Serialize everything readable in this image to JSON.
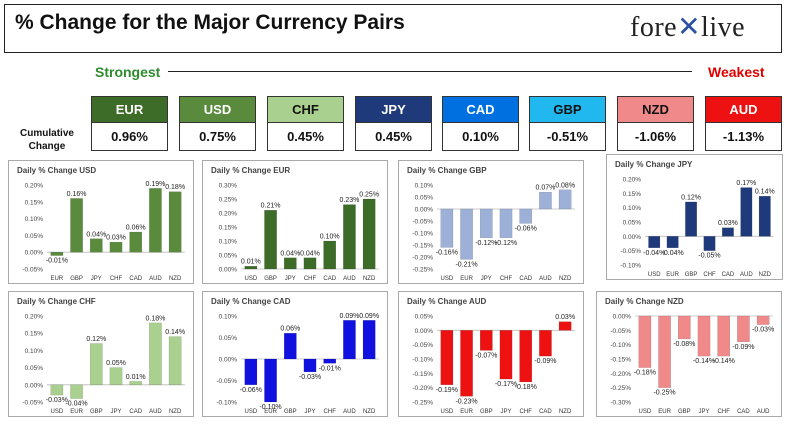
{
  "header": {
    "title": "% Change for the Major Currency Pairs",
    "logo_left": "fore",
    "logo_right": "live"
  },
  "scale": {
    "strongest": "Strongest",
    "weakest": "Weakest"
  },
  "cumulative": {
    "label": "Cumulative Change",
    "items": [
      {
        "code": "EUR",
        "value": "0.96%",
        "bg": "#3d6b28",
        "fg": "#ffffff"
      },
      {
        "code": "USD",
        "value": "0.75%",
        "bg": "#5a8a3c",
        "fg": "#ffffff"
      },
      {
        "code": "CHF",
        "value": "0.45%",
        "bg": "#a9d08e",
        "fg": "#111111"
      },
      {
        "code": "JPY",
        "value": "0.45%",
        "bg": "#1f3a7a",
        "fg": "#ffffff"
      },
      {
        "code": "CAD",
        "value": "0.10%",
        "bg": "#0070e0",
        "fg": "#ffffff"
      },
      {
        "code": "GBP",
        "value": "-0.51%",
        "bg": "#20b8ef",
        "fg": "#111111"
      },
      {
        "code": "NZD",
        "value": "-1.06%",
        "bg": "#f08a8a",
        "fg": "#111111"
      },
      {
        "code": "AUD",
        "value": "-1.13%",
        "bg": "#ee1111",
        "fg": "#ffffff"
      }
    ]
  },
  "chart_data": [
    {
      "type": "bar",
      "title": "Daily % Change USD",
      "categories": [
        "EUR",
        "GBP",
        "JPY",
        "CHF",
        "CAD",
        "AUD",
        "NZD"
      ],
      "values": [
        -0.01,
        0.16,
        0.04,
        0.03,
        0.06,
        0.19,
        0.18
      ],
      "labels": [
        "-0.01%",
        "0.16%",
        "0.04%",
        "0.03%",
        "0.06%",
        "0.19%",
        "0.18%"
      ],
      "yticks": [
        "-0.05%",
        "0.00%",
        "0.05%",
        "0.10%",
        "0.15%",
        "0.20%"
      ],
      "ylim": [
        -0.05,
        0.2
      ],
      "color": "#5a8a3c"
    },
    {
      "type": "bar",
      "title": "Daily % Change EUR",
      "categories": [
        "USD",
        "GBP",
        "JPY",
        "CHF",
        "CAD",
        "AUD",
        "NZD"
      ],
      "values": [
        0.01,
        0.21,
        0.04,
        0.04,
        0.1,
        0.23,
        0.25
      ],
      "labels": [
        "0.01%",
        "0.21%",
        "0.04%",
        "0.04%",
        "0.10%",
        "0.23%",
        "0.25%"
      ],
      "yticks": [
        "0.00%",
        "0.05%",
        "0.10%",
        "0.15%",
        "0.20%",
        "0.25%",
        "0.30%"
      ],
      "ylim": [
        0,
        0.3
      ],
      "color": "#3d6b28"
    },
    {
      "type": "bar",
      "title": "Daily % Change GBP",
      "categories": [
        "USD",
        "EUR",
        "JPY",
        "CHF",
        "CAD",
        "AUD",
        "NZD"
      ],
      "values": [
        -0.16,
        -0.21,
        -0.12,
        -0.12,
        -0.06,
        0.07,
        0.08
      ],
      "labels": [
        "-0.16%",
        "-0.21%",
        "-0.12%",
        "-0.12%",
        "-0.06%",
        "0.07%",
        "0.08%"
      ],
      "yticks": [
        "-0.25%",
        "-0.20%",
        "-0.15%",
        "-0.10%",
        "-0.05%",
        "0.00%",
        "0.05%",
        "0.10%"
      ],
      "ylim": [
        -0.25,
        0.1
      ],
      "color": "#9cb0d8"
    },
    {
      "type": "bar",
      "title": "Daily % Change JPY",
      "categories": [
        "USD",
        "EUR",
        "GBP",
        "CHF",
        "CAD",
        "AUD",
        "NZD"
      ],
      "values": [
        -0.04,
        -0.04,
        0.12,
        -0.05,
        0.03,
        0.17,
        0.14
      ],
      "labels": [
        "-0.04%",
        "-0.04%",
        "0.12%",
        "-0.05%",
        "0.03%",
        "0.17%",
        "0.14%"
      ],
      "yticks": [
        "-0.10%",
        "-0.05%",
        "0.00%",
        "0.05%",
        "0.10%",
        "0.15%",
        "0.20%"
      ],
      "ylim": [
        -0.1,
        0.2
      ],
      "color": "#1f3a7a"
    },
    {
      "type": "bar",
      "title": "Daily % Change CHF",
      "categories": [
        "USD",
        "EUR",
        "GBP",
        "JPY",
        "CAD",
        "AUD",
        "NZD"
      ],
      "values": [
        -0.03,
        -0.04,
        0.12,
        0.05,
        0.01,
        0.18,
        0.14
      ],
      "labels": [
        "-0.03%",
        "-0.04%",
        "0.12%",
        "0.05%",
        "0.01%",
        "0.18%",
        "0.14%"
      ],
      "yticks": [
        "-0.05%",
        "0.00%",
        "0.05%",
        "0.10%",
        "0.15%",
        "0.20%"
      ],
      "ylim": [
        -0.05,
        0.2
      ],
      "color": "#a9d08e"
    },
    {
      "type": "bar",
      "title": "Daily % Change CAD",
      "categories": [
        "USD",
        "EUR",
        "GBP",
        "JPY",
        "CHF",
        "AUD",
        "NZD"
      ],
      "values": [
        -0.06,
        -0.1,
        0.06,
        -0.03,
        -0.01,
        0.09,
        0.09
      ],
      "labels": [
        "-0.06%",
        "-0.10%",
        "0.06%",
        "-0.03%",
        "-0.01%",
        "0.09%",
        "0.09%"
      ],
      "yticks": [
        "-0.10%",
        "-0.05%",
        "0.00%",
        "0.05%",
        "0.10%"
      ],
      "ylim": [
        -0.1,
        0.1
      ],
      "color": "#1010e0"
    },
    {
      "type": "bar",
      "title": "Daily % Change AUD",
      "categories": [
        "USD",
        "EUR",
        "GBP",
        "JPY",
        "CHF",
        "CAD",
        "NZD"
      ],
      "values": [
        -0.19,
        -0.23,
        -0.07,
        -0.17,
        -0.18,
        -0.09,
        0.03
      ],
      "labels": [
        "-0.19%",
        "-0.23%",
        "-0.07%",
        "-0.17%",
        "-0.18%",
        "-0.09%",
        "0.03%"
      ],
      "yticks": [
        "-0.25%",
        "-0.20%",
        "-0.15%",
        "-0.10%",
        "-0.05%",
        "0.00%",
        "0.05%"
      ],
      "ylim": [
        -0.25,
        0.05
      ],
      "color": "#ee1111"
    },
    {
      "type": "bar",
      "title": "Daily % Change NZD",
      "categories": [
        "USD",
        "EUR",
        "GBP",
        "JPY",
        "CHF",
        "CAD",
        "AUD"
      ],
      "values": [
        -0.18,
        -0.25,
        -0.08,
        -0.14,
        -0.14,
        -0.09,
        -0.03
      ],
      "labels": [
        "-0.18%",
        "-0.25%",
        "-0.08%",
        "-0.14%",
        "-0.14%",
        "-0.09%",
        "-0.03%"
      ],
      "yticks": [
        "-0.30%",
        "-0.25%",
        "-0.20%",
        "-0.15%",
        "-0.10%",
        "-0.05%",
        "0.00%"
      ],
      "ylim": [
        -0.3,
        0
      ],
      "color": "#f08a8a"
    }
  ]
}
